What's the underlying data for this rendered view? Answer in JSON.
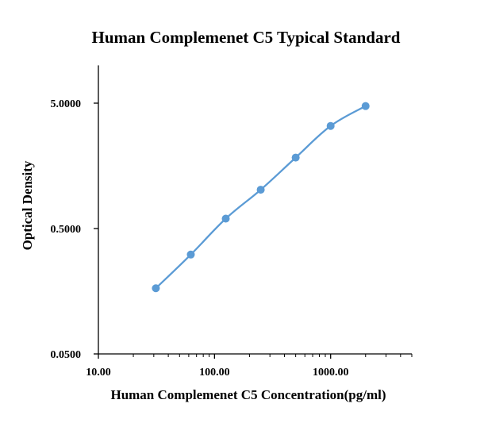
{
  "chart_data": {
    "type": "line",
    "title": "Human Complemenet C5 Typical Standard",
    "xlabel": "Human Complemenet C5 Concentration(pg/ml)",
    "ylabel": "Optical Density",
    "x_scale": "log",
    "y_scale": "log",
    "xlim": [
      10,
      5000
    ],
    "ylim": [
      0.05,
      10
    ],
    "x_ticks": [
      10,
      100,
      1000
    ],
    "x_tick_labels": [
      "10.00",
      "100.00",
      "1000.00"
    ],
    "y_ticks": [
      0.05,
      0.5,
      5
    ],
    "y_tick_labels": [
      "0.0500",
      "0.5000",
      "5.0000"
    ],
    "grid": false,
    "legend": "none",
    "series": [
      {
        "x": [
          31.25,
          62.5,
          125,
          250,
          500,
          1000,
          2000
        ],
        "y": [
          0.167,
          0.31,
          0.6,
          1.02,
          1.84,
          3.29,
          4.74
        ],
        "color": "#5B9BD5"
      }
    ]
  }
}
